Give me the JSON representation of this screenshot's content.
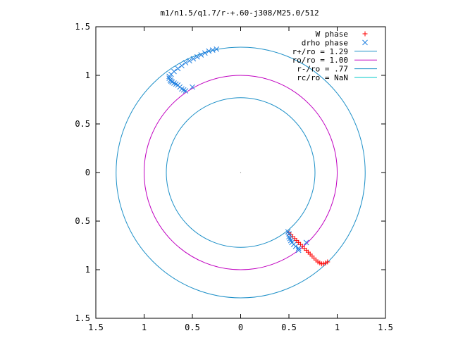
{
  "chart_data": {
    "type": "scatter",
    "title": "m1/n1.5/q1.7/r-+.60-j308/M25.0/512",
    "xlim": [
      -1.5,
      1.5
    ],
    "ylim": [
      -1.5,
      1.5
    ],
    "x_tick_values": [
      -1.5,
      -1,
      -0.5,
      0,
      0.5,
      1,
      1.5
    ],
    "x_tick_labels": [
      "1.5",
      "1",
      "0.5",
      "0",
      "0.5",
      "1",
      "1.5"
    ],
    "y_tick_values": [
      1.5,
      1,
      0.5,
      0,
      -0.5,
      -1,
      -1.5
    ],
    "y_tick_labels": [
      "1.5",
      "1",
      "0.5",
      "0",
      "0.5",
      "1",
      "1.5"
    ],
    "grid": false,
    "legend_position": "top-right",
    "colors": {
      "w_phase": "#ff0000",
      "drho_phase": "#1e7fe0",
      "r_plus": "#1e90c8",
      "r_o": "#c000c0",
      "r_minus": "#1e90c8",
      "r_c": "#00c8c8"
    },
    "circles": [
      {
        "name": "r+/ro = 1.29",
        "radius": 1.29,
        "color_key": "r_plus"
      },
      {
        "name": "ro/ro = 1.00",
        "radius": 1.0,
        "color_key": "r_o"
      },
      {
        "name": "r-/ro = .77",
        "radius": 0.77,
        "color_key": "r_minus"
      },
      {
        "name": "rc/ro = NaN",
        "radius": null,
        "color_key": "r_c"
      }
    ],
    "series": [
      {
        "name": "W phase",
        "marker": "plus",
        "color_key": "w_phase",
        "points": [
          [
            0.5,
            -0.62
          ],
          [
            0.52,
            -0.64
          ],
          [
            0.54,
            -0.66
          ],
          [
            0.56,
            -0.68
          ],
          [
            0.58,
            -0.7
          ],
          [
            0.6,
            -0.72
          ],
          [
            0.62,
            -0.74
          ],
          [
            0.64,
            -0.76
          ],
          [
            0.66,
            -0.78
          ],
          [
            0.68,
            -0.8
          ],
          [
            0.7,
            -0.82
          ],
          [
            0.72,
            -0.84
          ],
          [
            0.74,
            -0.86
          ],
          [
            0.76,
            -0.88
          ],
          [
            0.78,
            -0.9
          ],
          [
            0.8,
            -0.92
          ],
          [
            0.82,
            -0.93
          ],
          [
            0.84,
            -0.94
          ],
          [
            0.86,
            -0.94
          ],
          [
            0.88,
            -0.93
          ],
          [
            0.9,
            -0.92
          ]
        ]
      },
      {
        "name": "drho phase",
        "marker": "x",
        "color_key": "drho_phase",
        "points": [
          [
            -0.74,
            0.99
          ],
          [
            -0.74,
            0.97
          ],
          [
            -0.73,
            0.95
          ],
          [
            -0.72,
            0.94
          ],
          [
            -0.71,
            0.93
          ],
          [
            -0.69,
            0.92
          ],
          [
            -0.67,
            0.91
          ],
          [
            -0.65,
            0.9
          ],
          [
            -0.63,
            0.88
          ],
          [
            -0.61,
            0.86
          ],
          [
            -0.59,
            0.85
          ],
          [
            -0.57,
            0.84
          ],
          [
            -0.5,
            0.88
          ],
          [
            -0.72,
            1.01
          ],
          [
            -0.69,
            1.04
          ],
          [
            -0.65,
            1.07
          ],
          [
            -0.61,
            1.1
          ],
          [
            -0.57,
            1.13
          ],
          [
            -0.53,
            1.15
          ],
          [
            -0.49,
            1.17
          ],
          [
            -0.45,
            1.19
          ],
          [
            -0.41,
            1.21
          ],
          [
            -0.37,
            1.23
          ],
          [
            -0.33,
            1.25
          ],
          [
            -0.29,
            1.26
          ],
          [
            -0.25,
            1.27
          ],
          [
            0.49,
            -0.61
          ],
          [
            0.5,
            -0.63
          ],
          [
            0.5,
            -0.66
          ],
          [
            0.51,
            -0.68
          ],
          [
            0.52,
            -0.7
          ],
          [
            0.53,
            -0.72
          ],
          [
            0.55,
            -0.74
          ],
          [
            0.57,
            -0.76
          ],
          [
            0.6,
            -0.78
          ],
          [
            0.68,
            -0.72
          ],
          [
            0.6,
            -0.8
          ]
        ]
      }
    ]
  }
}
